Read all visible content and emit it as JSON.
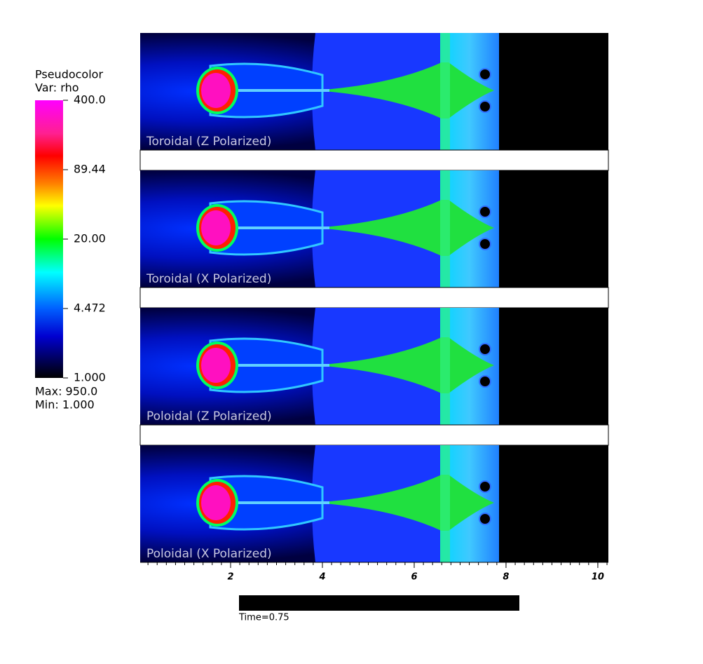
{
  "legend": {
    "title": "Pseudocolor",
    "variable": "Var: rho",
    "scale": "log",
    "range": [
      1,
      400
    ],
    "ticks": [
      {
        "value": 400,
        "label": "400.0"
      },
      {
        "value": 89.44,
        "label": "89.44"
      },
      {
        "value": 20,
        "label": "20.00"
      },
      {
        "value": 4.472,
        "label": "4.472"
      },
      {
        "value": 1,
        "label": "1.000"
      }
    ],
    "max": "Max:  950.0",
    "min": "Min:  1.000"
  },
  "panels": [
    {
      "label": "Toroidal (Z Polarized)"
    },
    {
      "label": "Toroidal (X Polarized)"
    },
    {
      "label": "Poloidal (Z Polarized)"
    },
    {
      "label": "Poloidal (X Polarized)"
    }
  ],
  "axis": {
    "xlim": [
      0.03,
      10.23
    ],
    "xticks": [
      2,
      4,
      6,
      8,
      10
    ]
  },
  "time_slider": {
    "label": "Time=0.75",
    "fraction": 0.25
  }
}
